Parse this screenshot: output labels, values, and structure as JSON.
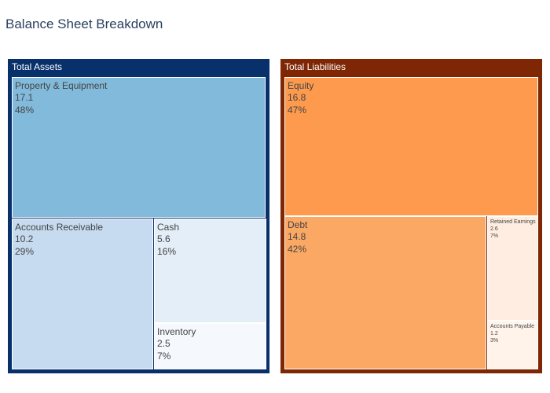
{
  "title": "Balance Sheet Breakdown",
  "chart_data": {
    "type": "treemap",
    "title": "Balance Sheet Breakdown",
    "groups": [
      {
        "label": "Total Assets",
        "color": "#08306b",
        "items": [
          {
            "label": "Property & Equipment",
            "value": "17.1",
            "percent": "48%",
            "color": "#82badb"
          },
          {
            "label": "Accounts Receivable",
            "value": "10.2",
            "percent": "29%",
            "color": "#c6dbef"
          },
          {
            "label": "Cash",
            "value": "5.6",
            "percent": "16%",
            "color": "#e3eef8"
          },
          {
            "label": "Inventory",
            "value": "2.5",
            "percent": "7%",
            "color": "#f5f9fe"
          }
        ]
      },
      {
        "label": "Total Liabilities",
        "color": "#7f2704",
        "items": [
          {
            "label": "Equity",
            "value": "16.8",
            "percent": "47%",
            "color": "#fd9a4e"
          },
          {
            "label": "Debt",
            "value": "14.8",
            "percent": "42%",
            "color": "#fba864"
          },
          {
            "label": "Retained Earnings",
            "value": "2.6",
            "percent": "7%",
            "color": "#feede0"
          },
          {
            "label": "Accounts Payable",
            "value": "1.2",
            "percent": "3%",
            "color": "#fff3ea"
          }
        ]
      }
    ]
  }
}
